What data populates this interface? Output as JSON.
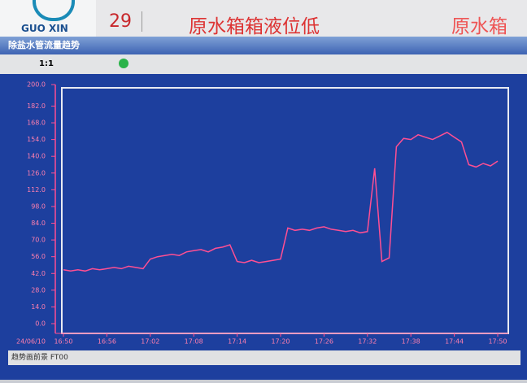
{
  "header": {
    "logo": "GUO XIN",
    "alarm_number": "29",
    "alarm_text": "原水箱箱液位低",
    "alarm_tag": "原水箱"
  },
  "window": {
    "title": "除盐水管流量趋势",
    "toolbar_zoom": "1:1",
    "status": "趋势画前景 FT00"
  },
  "chart_data": {
    "type": "line",
    "date": "24/06/10",
    "x": [
      "16:50",
      "16:51",
      "16:52",
      "16:53",
      "16:54",
      "16:55",
      "16:56",
      "16:57",
      "16:58",
      "16:59",
      "17:00",
      "17:01",
      "17:02",
      "17:03",
      "17:04",
      "17:05",
      "17:06",
      "17:07",
      "17:08",
      "17:09",
      "17:10",
      "17:11",
      "17:12",
      "17:13",
      "17:14",
      "17:15",
      "17:16",
      "17:17",
      "17:18",
      "17:19",
      "17:20",
      "17:21",
      "17:22",
      "17:23",
      "17:24",
      "17:25",
      "17:26",
      "17:27",
      "17:28",
      "17:29",
      "17:30",
      "17:31",
      "17:32",
      "17:33",
      "17:34",
      "17:35",
      "17:36",
      "17:37",
      "17:38",
      "17:39",
      "17:40",
      "17:41",
      "17:42",
      "17:43",
      "17:44",
      "17:45",
      "17:46",
      "17:47",
      "17:48",
      "17:49",
      "17:50"
    ],
    "xticks": [
      "16:50",
      "16:56",
      "17:02",
      "17:08",
      "17:14",
      "17:20",
      "17:26",
      "17:32",
      "17:38",
      "17:44",
      "17:50"
    ],
    "series": [
      {
        "color": "#ff4f93",
        "values": [
          45,
          44,
          45,
          44,
          46,
          45,
          46,
          47,
          46,
          48,
          47,
          46,
          54,
          56,
          57,
          58,
          57,
          60,
          61,
          62,
          60,
          63,
          64,
          66,
          52,
          51,
          53,
          51,
          52,
          53,
          54,
          80,
          78,
          79,
          78,
          80,
          81,
          79,
          78,
          77,
          78,
          76,
          77,
          130,
          52,
          55,
          148,
          155,
          154,
          158,
          156,
          154,
          157,
          160,
          156,
          152,
          133,
          131,
          134,
          132,
          136
        ]
      }
    ],
    "ylim": [
      0,
      200
    ],
    "yticks": [
      {
        "value": 0,
        "label": "0.0"
      },
      {
        "value": 14,
        "label": "14.0"
      },
      {
        "value": 28,
        "label": "28.0"
      },
      {
        "value": 42,
        "label": "42.0"
      },
      {
        "value": 56,
        "label": "56.0"
      },
      {
        "value": 70,
        "label": "70.0"
      },
      {
        "value": 84,
        "label": "84.0"
      },
      {
        "value": 98,
        "label": "98.0"
      },
      {
        "value": 112,
        "label": "112.0"
      },
      {
        "value": 126,
        "label": "126.0"
      },
      {
        "value": 140,
        "label": "140.0"
      },
      {
        "value": 154,
        "label": "154.0"
      },
      {
        "value": 168,
        "label": "168.0"
      },
      {
        "value": 182,
        "label": "182.0"
      },
      {
        "value": 200,
        "label": "200.0"
      }
    ]
  }
}
